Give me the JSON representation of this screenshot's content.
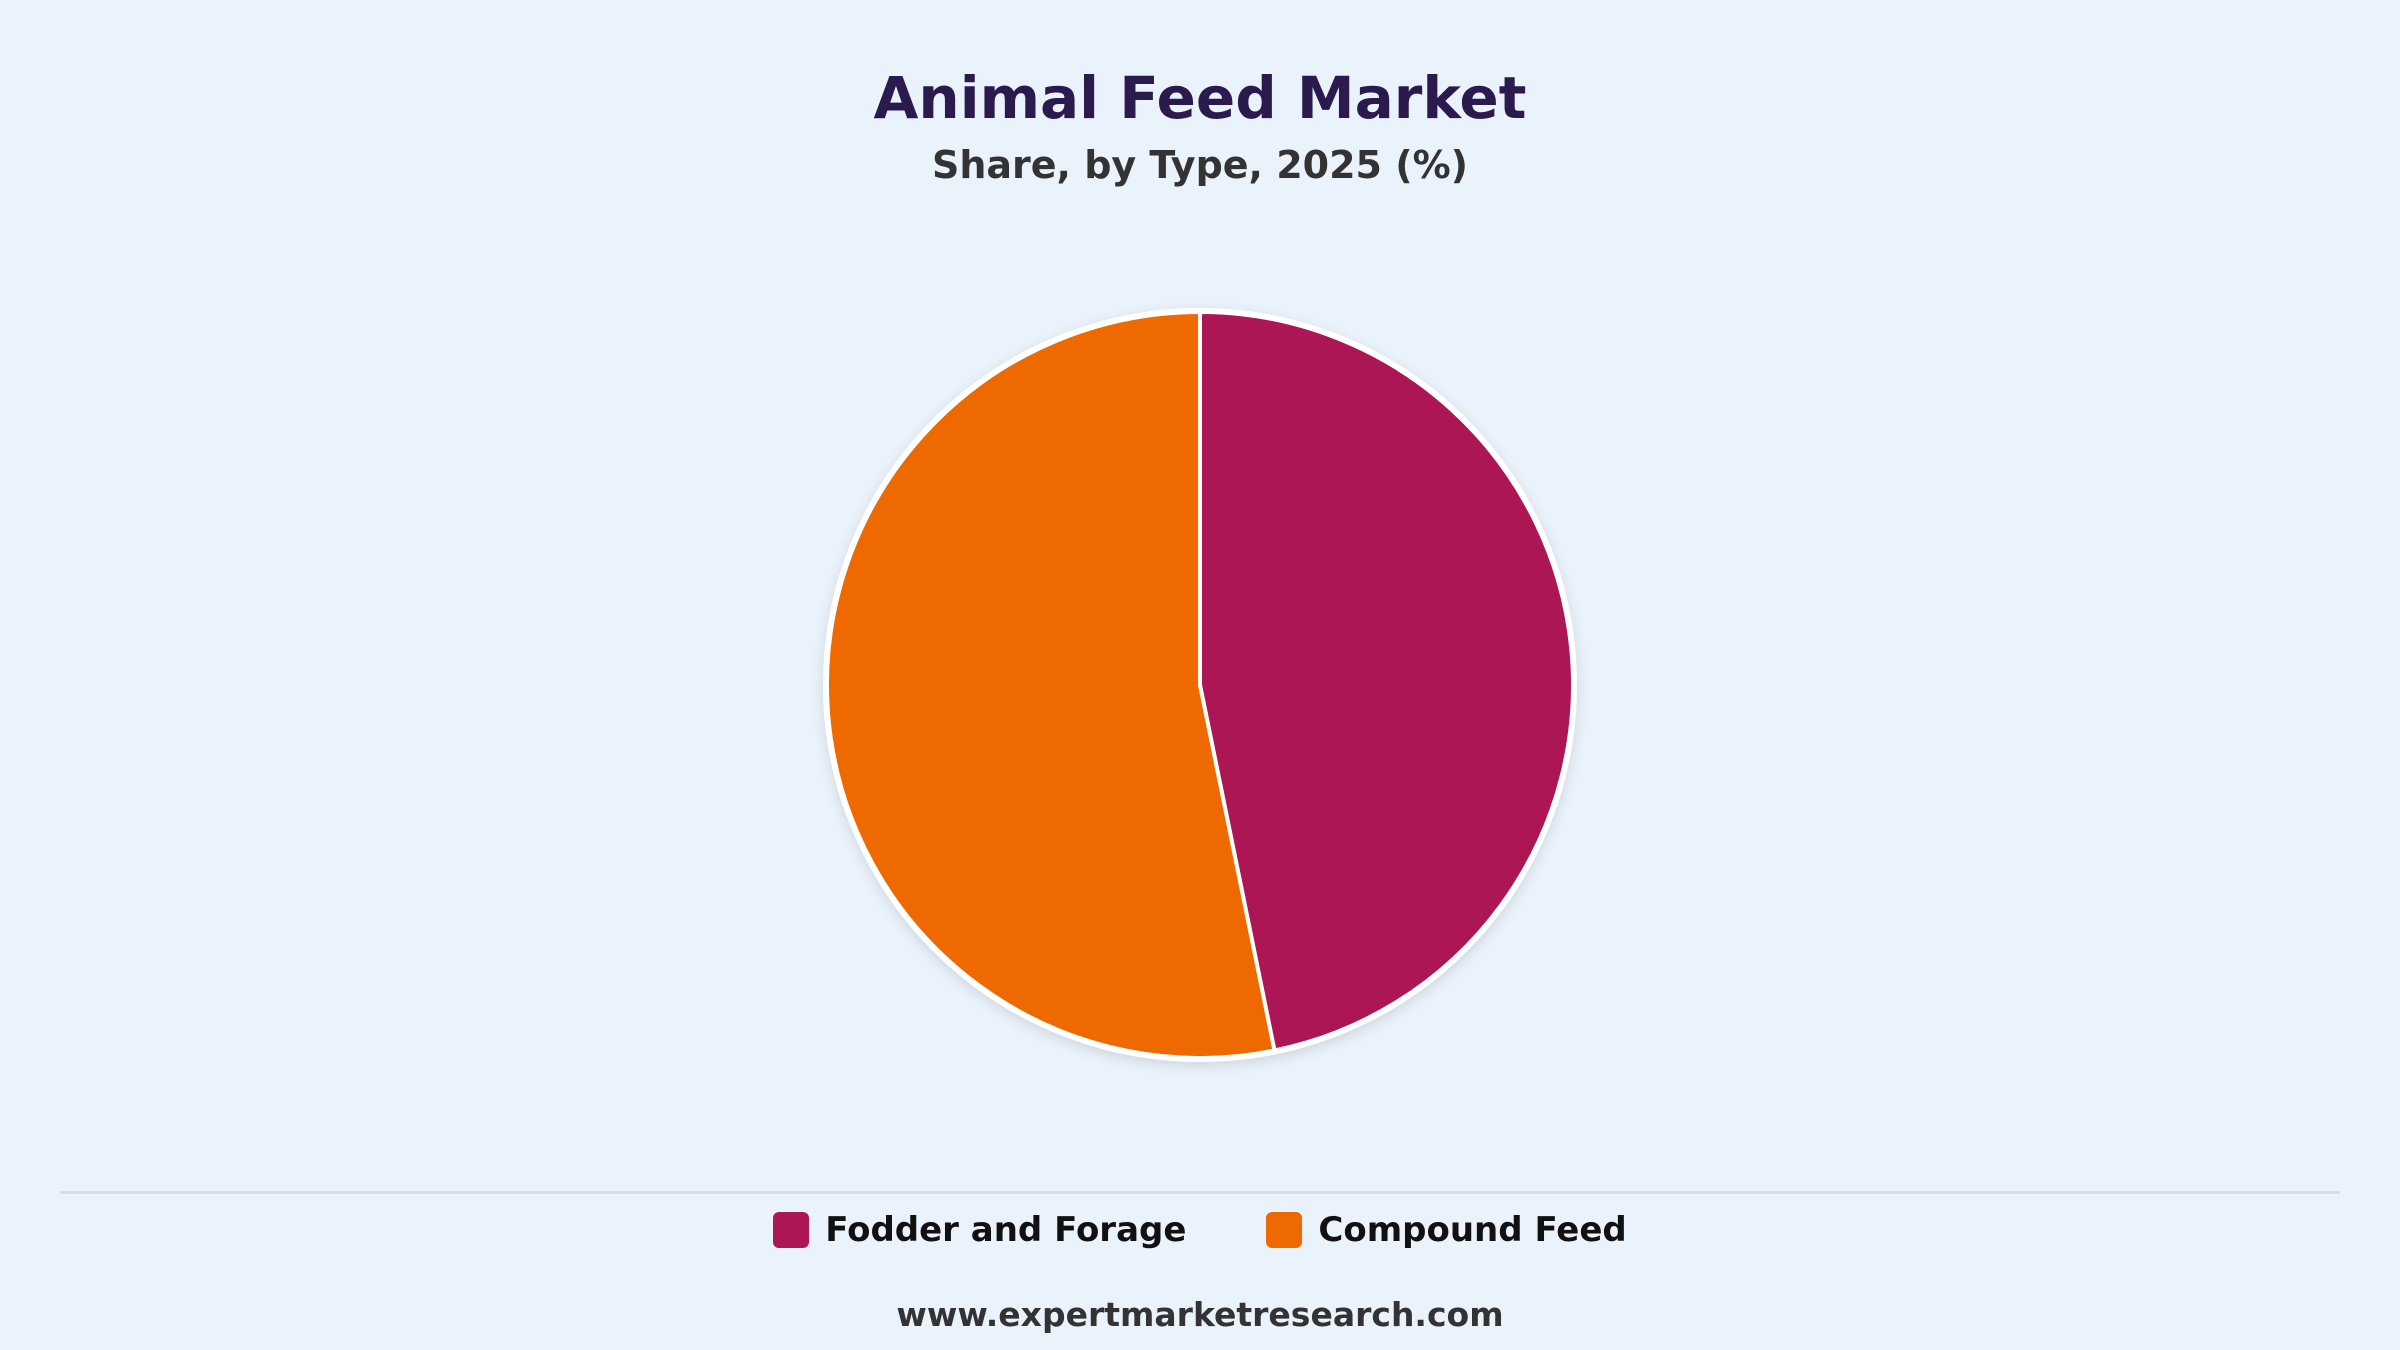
{
  "header": {
    "title": "Animal Feed Market",
    "subtitle": "Share, by Type, 2025 (%)"
  },
  "chart_data": {
    "type": "pie",
    "title": "Animal Feed Market",
    "subtitle": "Share, by Type, 2025 (%)",
    "categories": [
      "Fodder and Forage",
      "Compound Feed"
    ],
    "values": [
      46.8,
      53.2
    ],
    "colors": [
      "#ac1655",
      "#ee6a00"
    ],
    "legend": "bottom-center"
  },
  "legend": {
    "items": [
      {
        "label": "Fodder and Forage",
        "color": "#ac1655"
      },
      {
        "label": "Compound Feed",
        "color": "#ee6a00"
      }
    ]
  },
  "footer": {
    "source": "www.expertmarketresearch.com"
  }
}
